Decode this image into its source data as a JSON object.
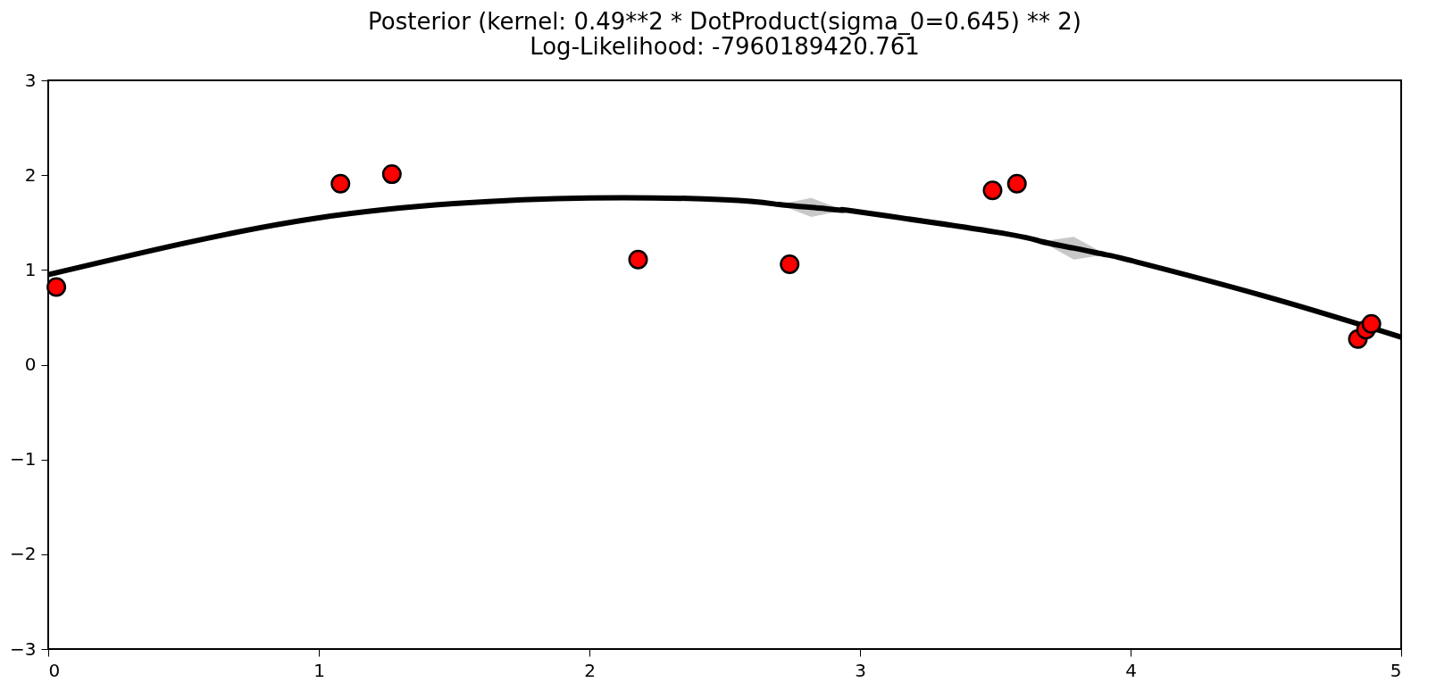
{
  "chart_data": {
    "type": "line",
    "title": [
      "Posterior (kernel: 0.49**2 * DotProduct(sigma_0=0.645) ** 2)",
      "Log-Likelihood: -7960189420.761"
    ],
    "xlim": [
      0,
      5
    ],
    "ylim": [
      -3,
      3
    ],
    "xticks": [
      0,
      1,
      2,
      3,
      4,
      5
    ],
    "yticks": [
      -3,
      -2,
      -1,
      0,
      1,
      2,
      3
    ],
    "grid": false,
    "series": [
      {
        "color": "#000000",
        "line_style": "solid",
        "marker": "none",
        "x": [
          0,
          0.5,
          1,
          1.5,
          2,
          2.5,
          2.7,
          2.82,
          2.94,
          3,
          3.5,
          3.67,
          3.79,
          3.91,
          4,
          4.5,
          5
        ],
        "values": [
          0.95,
          1.28,
          1.55,
          1.7,
          1.76,
          1.74,
          1.69,
          1.66,
          1.63,
          1.61,
          1.4,
          1.3,
          1.23,
          1.16,
          1.1,
          0.72,
          0.29
        ],
        "lower": [
          0.95,
          1.28,
          1.55,
          1.7,
          1.76,
          1.74,
          1.69,
          1.56,
          1.63,
          1.61,
          1.4,
          1.3,
          1.11,
          1.16,
          1.1,
          0.72,
          0.29
        ],
        "upper": [
          0.95,
          1.28,
          1.55,
          1.7,
          1.76,
          1.74,
          1.69,
          1.76,
          1.63,
          1.61,
          1.4,
          1.3,
          1.35,
          1.16,
          1.1,
          0.72,
          0.29
        ]
      },
      {
        "type": "scatter",
        "color": "#ff0000",
        "marker": "circle",
        "x": [
          0.03,
          1.08,
          1.27,
          2.18,
          2.74,
          3.49,
          3.58,
          4.84,
          4.87,
          4.89
        ],
        "values": [
          0.82,
          1.91,
          2.01,
          1.11,
          1.06,
          1.84,
          1.91,
          0.27,
          0.37,
          0.43
        ]
      }
    ]
  }
}
